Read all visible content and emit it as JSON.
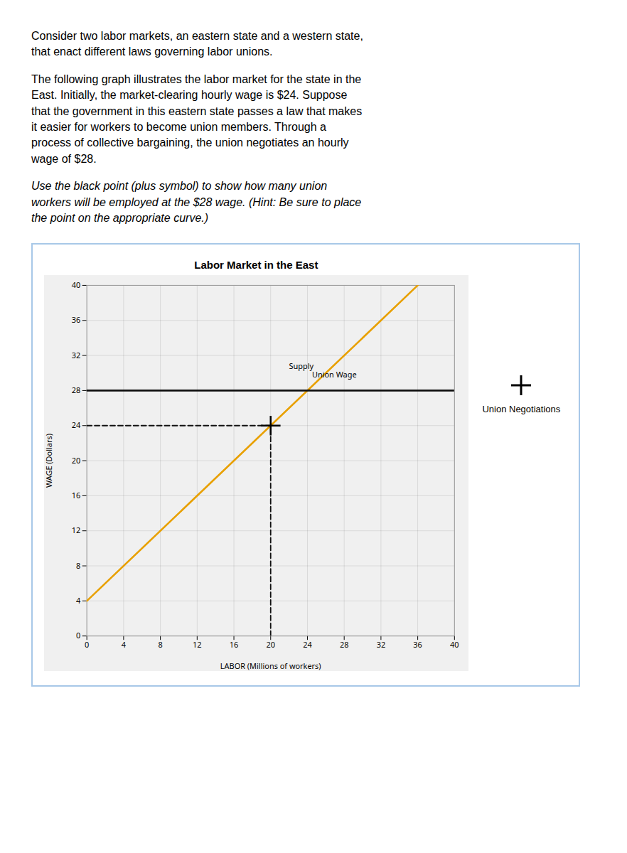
{
  "chart_data": {
    "type": "line",
    "title": "Labor Market in the East",
    "subtitle": [
      "Consider two labor markets, an eastern state and a western state, that enact different laws governing labor unions.",
      "The following graph illustrates the labor market for the state in the East. Initially, the market-clearing hourly wage is $24. Suppose that the government in this eastern state passes a law that makes it easier for workers to become union members. Through a process of collective bargaining, the union negotiates an hourly wage of $28.",
      "Use the black point (plus symbol) to show how many union workers will be employed at the $28 wage. (Hint: Be sure to place the point on the appropriate curve.)"
    ],
    "xlabel": "LABOR (Millions of workers)",
    "ylabel": "WAGE (Dollars)",
    "xlim": [
      0,
      40
    ],
    "ylim": [
      0,
      40
    ],
    "xticks": [
      0,
      4,
      8,
      12,
      16,
      20,
      24,
      28,
      32,
      36,
      40
    ],
    "yticks": [
      0,
      4,
      8,
      12,
      16,
      20,
      24,
      28,
      32,
      36,
      40
    ],
    "grid": true,
    "legend": "right",
    "series": [
      {
        "type": "line",
        "color": "#E8A000",
        "x": [
          0,
          36
        ],
        "values": [
          4,
          40
        ]
      },
      {
        "type": "line",
        "color": "#111111",
        "x": [
          0,
          40
        ],
        "values": [
          28,
          28
        ]
      },
      {
        "type": "line",
        "color": "#111111",
        "line_style": "dashed",
        "x": [
          0,
          20
        ],
        "values": [
          24,
          24
        ]
      },
      {
        "type": "line",
        "color": "#111111",
        "line_style": "dashed",
        "x": [
          20,
          20
        ],
        "values": [
          0,
          24
        ]
      },
      {
        "type": "scatter",
        "name": "Union Negotiations",
        "color": "black",
        "marker": "plus",
        "x": [
          20
        ],
        "values": [
          24
        ]
      }
    ],
    "annotations": [
      {
        "text": "Supply",
        "x": 22.0,
        "y": 30.5
      },
      {
        "text": "Union Wage",
        "x": 24.5,
        "y": 29.5
      }
    ]
  }
}
